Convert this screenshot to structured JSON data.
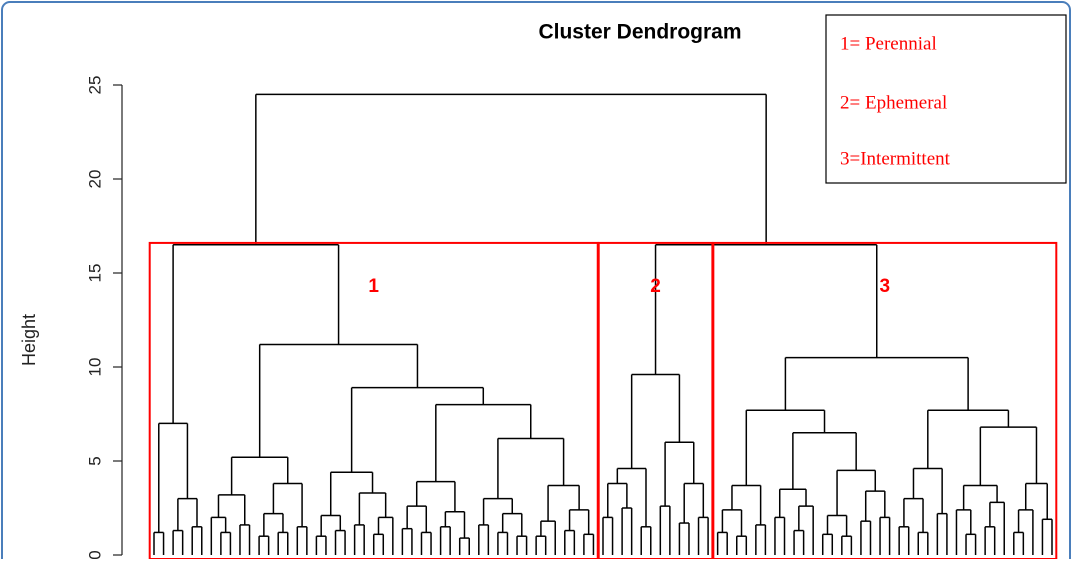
{
  "chart_data": {
    "type": "dendrogram",
    "title": "Cluster Dendrogram",
    "ylabel": "Height",
    "ylim": [
      0,
      25
    ],
    "yticks": [
      0,
      5,
      10,
      15,
      20,
      25
    ],
    "cut_height": 16.6,
    "color": "#000000",
    "cluster_color": "#ff0000",
    "legend_text": [
      "1= Perennial",
      "2= Ephemeral",
      "3=Intermittent"
    ],
    "tree": {
      "height": 24.5,
      "children": [
        {
          "height": 16.5,
          "cluster": "1",
          "children": [
            {
              "height": 7.0,
              "children": [
                {
                  "height": 1.2,
                  "children": [
                    0,
                    0
                  ]
                },
                {
                  "height": 3.0,
                  "children": [
                    {
                      "height": 1.3,
                      "children": [
                        0,
                        0
                      ]
                    },
                    {
                      "height": 1.5,
                      "children": [
                        0,
                        0
                      ]
                    }
                  ]
                }
              ]
            },
            {
              "height": 11.2,
              "children": [
                {
                  "height": 5.2,
                  "children": [
                    {
                      "height": 3.2,
                      "children": [
                        {
                          "height": 2.0,
                          "children": [
                            0,
                            {
                              "height": 1.2,
                              "children": [
                                0,
                                0
                              ]
                            }
                          ]
                        },
                        {
                          "height": 1.6,
                          "children": [
                            0,
                            0
                          ]
                        }
                      ]
                    },
                    {
                      "height": 3.8,
                      "children": [
                        {
                          "height": 2.2,
                          "children": [
                            {
                              "height": 1.0,
                              "children": [
                                0,
                                0
                              ]
                            },
                            {
                              "height": 1.2,
                              "children": [
                                0,
                                0
                              ]
                            }
                          ]
                        },
                        {
                          "height": 1.5,
                          "children": [
                            0,
                            0
                          ]
                        }
                      ]
                    }
                  ]
                },
                {
                  "height": 8.9,
                  "children": [
                    {
                      "height": 4.4,
                      "children": [
                        {
                          "height": 2.1,
                          "children": [
                            {
                              "height": 1.0,
                              "children": [
                                0,
                                0
                              ]
                            },
                            {
                              "height": 1.3,
                              "children": [
                                0,
                                0
                              ]
                            }
                          ]
                        },
                        {
                          "height": 3.3,
                          "children": [
                            {
                              "height": 1.6,
                              "children": [
                                0,
                                0
                              ]
                            },
                            {
                              "height": 2.0,
                              "children": [
                                {
                                  "height": 1.1,
                                  "children": [
                                    0,
                                    0
                                  ]
                                },
                                0
                              ]
                            }
                          ]
                        }
                      ]
                    },
                    {
                      "height": 8.0,
                      "children": [
                        {
                          "height": 3.9,
                          "children": [
                            {
                              "height": 2.6,
                              "children": [
                                {
                                  "height": 1.4,
                                  "children": [
                                    0,
                                    0
                                  ]
                                },
                                {
                                  "height": 1.2,
                                  "children": [
                                    0,
                                    0
                                  ]
                                }
                              ]
                            },
                            {
                              "height": 2.3,
                              "children": [
                                {
                                  "height": 1.5,
                                  "children": [
                                    0,
                                    0
                                  ]
                                },
                                {
                                  "height": 0.9,
                                  "children": [
                                    0,
                                    0
                                  ]
                                }
                              ]
                            }
                          ]
                        },
                        {
                          "height": 6.2,
                          "children": [
                            {
                              "height": 3.0,
                              "children": [
                                {
                                  "height": 1.6,
                                  "children": [
                                    0,
                                    0
                                  ]
                                },
                                {
                                  "height": 2.2,
                                  "children": [
                                    {
                                      "height": 1.2,
                                      "children": [
                                        0,
                                        0
                                      ]
                                    },
                                    {
                                      "height": 1.0,
                                      "children": [
                                        0,
                                        0
                                      ]
                                    }
                                  ]
                                }
                              ]
                            },
                            {
                              "height": 3.7,
                              "children": [
                                {
                                  "height": 1.8,
                                  "children": [
                                    {
                                      "height": 1.0,
                                      "children": [
                                        0,
                                        0
                                      ]
                                    },
                                    0
                                  ]
                                },
                                {
                                  "height": 2.4,
                                  "children": [
                                    {
                                      "height": 1.3,
                                      "children": [
                                        0,
                                        0
                                      ]
                                    },
                                    {
                                      "height": 1.1,
                                      "children": [
                                        0,
                                        0
                                      ]
                                    }
                                  ]
                                }
                              ]
                            }
                          ]
                        }
                      ]
                    }
                  ]
                }
              ]
            }
          ]
        },
        {
          "height": 16.5,
          "children": [
            {
              "height": 9.6,
              "cluster": "2",
              "children": [
                {
                  "height": 4.6,
                  "children": [
                    {
                      "height": 3.8,
                      "children": [
                        {
                          "height": 2.0,
                          "children": [
                            0,
                            0
                          ]
                        },
                        {
                          "height": 2.5,
                          "children": [
                            0,
                            0
                          ]
                        }
                      ]
                    },
                    {
                      "height": 1.5,
                      "children": [
                        0,
                        0
                      ]
                    }
                  ]
                },
                {
                  "height": 6.0,
                  "children": [
                    {
                      "height": 2.6,
                      "children": [
                        0,
                        0
                      ]
                    },
                    {
                      "height": 3.8,
                      "children": [
                        {
                          "height": 1.7,
                          "children": [
                            0,
                            0
                          ]
                        },
                        {
                          "height": 2.0,
                          "children": [
                            0,
                            0
                          ]
                        }
                      ]
                    }
                  ]
                }
              ]
            },
            {
              "height": 10.5,
              "cluster": "3",
              "children": [
                {
                  "height": 7.7,
                  "children": [
                    {
                      "height": 3.7,
                      "children": [
                        {
                          "height": 2.4,
                          "children": [
                            {
                              "height": 1.2,
                              "children": [
                                0,
                                0
                              ]
                            },
                            {
                              "height": 1.0,
                              "children": [
                                0,
                                0
                              ]
                            }
                          ]
                        },
                        {
                          "height": 1.6,
                          "children": [
                            0,
                            0
                          ]
                        }
                      ]
                    },
                    {
                      "height": 6.5,
                      "children": [
                        {
                          "height": 3.5,
                          "children": [
                            {
                              "height": 2.0,
                              "children": [
                                0,
                                0
                              ]
                            },
                            {
                              "height": 2.6,
                              "children": [
                                {
                                  "height": 1.3,
                                  "children": [
                                    0,
                                    0
                                  ]
                                },
                                0
                              ]
                            }
                          ]
                        },
                        {
                          "height": 4.5,
                          "children": [
                            {
                              "height": 2.1,
                              "children": [
                                {
                                  "height": 1.1,
                                  "children": [
                                    0,
                                    0
                                  ]
                                },
                                {
                                  "height": 1.0,
                                  "children": [
                                    0,
                                    0
                                  ]
                                }
                              ]
                            },
                            {
                              "height": 3.4,
                              "children": [
                                {
                                  "height": 1.8,
                                  "children": [
                                    0,
                                    0
                                  ]
                                },
                                {
                                  "height": 2.0,
                                  "children": [
                                    0,
                                    0
                                  ]
                                }
                              ]
                            }
                          ]
                        }
                      ]
                    }
                  ]
                },
                {
                  "height": 7.7,
                  "children": [
                    {
                      "height": 4.6,
                      "children": [
                        {
                          "height": 3.0,
                          "children": [
                            {
                              "height": 1.5,
                              "children": [
                                0,
                                0
                              ]
                            },
                            {
                              "height": 1.2,
                              "children": [
                                0,
                                0
                              ]
                            }
                          ]
                        },
                        {
                          "height": 2.2,
                          "children": [
                            0,
                            0
                          ]
                        }
                      ]
                    },
                    {
                      "height": 6.8,
                      "children": [
                        {
                          "height": 3.7,
                          "children": [
                            {
                              "height": 2.4,
                              "children": [
                                0,
                                {
                                  "height": 1.1,
                                  "children": [
                                    0,
                                    0
                                  ]
                                }
                              ]
                            },
                            {
                              "height": 2.8,
                              "children": [
                                {
                                  "height": 1.5,
                                  "children": [
                                    0,
                                    0
                                  ]
                                },
                                0
                              ]
                            }
                          ]
                        },
                        {
                          "height": 3.8,
                          "children": [
                            {
                              "height": 2.4,
                              "children": [
                                {
                                  "height": 1.2,
                                  "children": [
                                    0,
                                    0
                                  ]
                                },
                                0
                              ]
                            },
                            {
                              "height": 1.9,
                              "children": [
                                0,
                                0
                              ]
                            }
                          ]
                        }
                      ]
                    }
                  ]
                }
              ]
            }
          ]
        }
      ]
    }
  }
}
